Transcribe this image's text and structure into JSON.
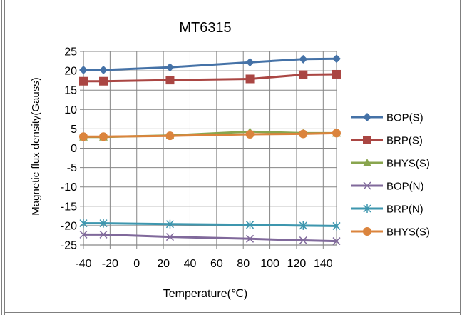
{
  "chart_data": {
    "type": "line",
    "title": "MT6315",
    "xlabel": "Temperature(℃)",
    "ylabel": "Magnetic flux density(Gauss)",
    "xlim": [
      -40,
      150
    ],
    "ylim": [
      -25,
      25
    ],
    "xticks": [
      -40,
      -20,
      0,
      20,
      40,
      60,
      80,
      100,
      120,
      140
    ],
    "xtick_labels": [
      "-40",
      "-20",
      "0",
      "20",
      "40",
      "60",
      "80",
      "100",
      "120",
      "140"
    ],
    "yticks": [
      25,
      20,
      15,
      10,
      5,
      0,
      -5,
      -10,
      -15,
      -20,
      -25
    ],
    "ytick_labels": [
      "25",
      "20",
      "15",
      "10",
      "5",
      "0",
      "-5",
      "-10",
      "-15",
      "-20",
      "-25"
    ],
    "grid": true,
    "legend_position": "right",
    "x": [
      -40,
      -25,
      25,
      85,
      125,
      150
    ],
    "series": [
      {
        "name": "BOP(S)",
        "color": "#4572A7",
        "marker": "diamond",
        "values": [
          20.2,
          20.2,
          20.9,
          22.2,
          23.0,
          23.1
        ]
      },
      {
        "name": "BRP(S)",
        "color": "#AA4643",
        "marker": "square",
        "values": [
          17.3,
          17.3,
          17.6,
          17.9,
          19.0,
          19.1
        ]
      },
      {
        "name": "BHYS(S)",
        "color": "#89A54E",
        "marker": "triangle",
        "values": [
          2.9,
          2.9,
          3.3,
          4.3,
          3.9,
          3.9
        ]
      },
      {
        "name": "BOP(N)",
        "color": "#80699B",
        "marker": "x",
        "values": [
          -22.3,
          -22.3,
          -22.9,
          -23.4,
          -23.8,
          -24.0
        ]
      },
      {
        "name": "BRP(N)",
        "color": "#3D96AE",
        "marker": "asterisk",
        "values": [
          -19.4,
          -19.4,
          -19.6,
          -19.8,
          -20.0,
          -20.1
        ]
      },
      {
        "name": "BHYS(S)",
        "color": "#DB843D",
        "marker": "circle",
        "values": [
          3.0,
          3.0,
          3.2,
          3.6,
          3.7,
          3.9
        ]
      }
    ]
  }
}
